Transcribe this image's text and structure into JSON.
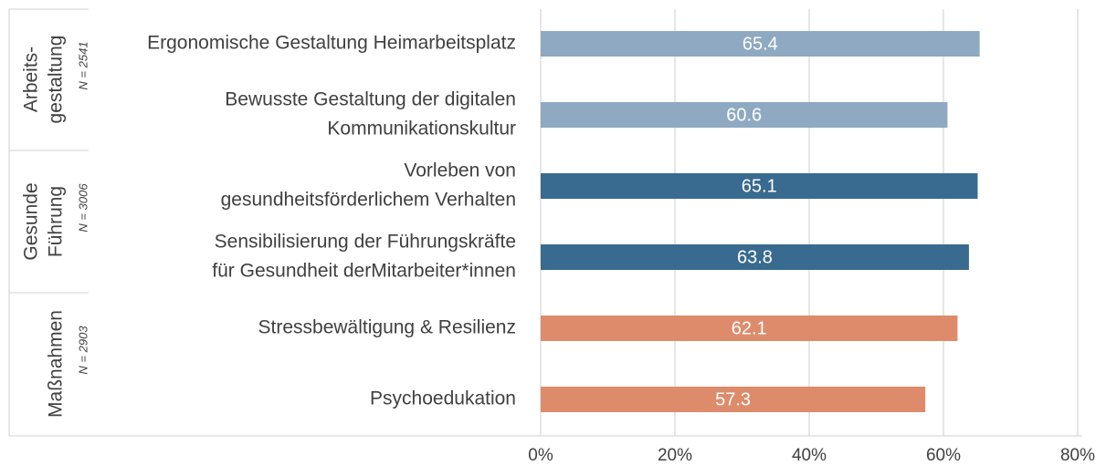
{
  "chart_data": {
    "type": "bar",
    "groups": [
      {
        "name": [
          "Arbeits-",
          "gestaltung"
        ],
        "n": "N = 2541",
        "color": "#8ea9c1",
        "categories": [
          [
            "Ergonomische Gestaltung Heimarbeitsplatz"
          ],
          [
            "Bewusste Gestaltung der digitalen",
            "Kommunikationskultur"
          ]
        ],
        "values": [
          65.4,
          60.6
        ]
      },
      {
        "name": [
          "Gesunde",
          "Führung"
        ],
        "n": "N = 3006",
        "color": "#386b8f",
        "categories": [
          [
            "Vorleben von",
            "gesundheitsförderlichem Verhalten"
          ],
          [
            "Sensibilisierung der Führungskräfte",
            "für Gesundheit derMitarbeiter*innen"
          ]
        ],
        "values": [
          65.1,
          63.8
        ]
      },
      {
        "name": [
          "Maßnahmen"
        ],
        "n": "N = 2903",
        "color": "#dd8b6b",
        "categories": [
          [
            "Stressbewältigung & Resilienz"
          ],
          [
            "Psychoedukation"
          ]
        ],
        "values": [
          62.1,
          57.3
        ]
      }
    ],
    "xlim": [
      0,
      80
    ],
    "xticks": [
      {
        "value": 0,
        "label": "0%"
      },
      {
        "value": 20,
        "label": "20%"
      },
      {
        "value": 40,
        "label": "40%"
      },
      {
        "value": 60,
        "label": "60%"
      },
      {
        "value": 80,
        "label": "80%"
      }
    ],
    "grid": true
  }
}
